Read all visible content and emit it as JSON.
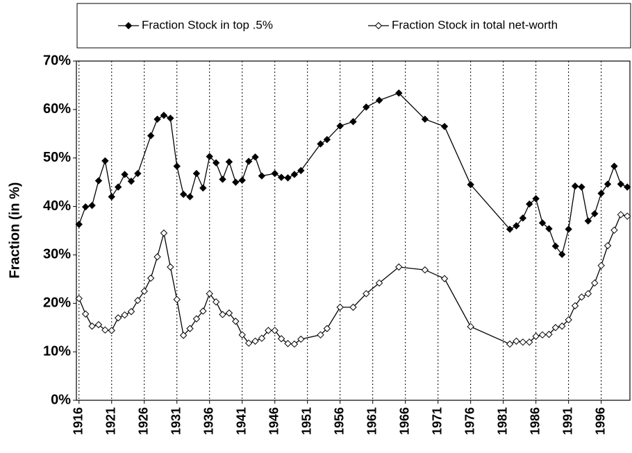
{
  "chart_data": {
    "type": "line",
    "y_label": "Fraction (in %)",
    "xlim": [
      1915.6,
      2000.4
    ],
    "xticks": [
      1916,
      1921,
      1926,
      1931,
      1936,
      1941,
      1946,
      1951,
      1956,
      1961,
      1966,
      1971,
      1976,
      1981,
      1986,
      1991,
      1996
    ],
    "ylim": [
      0,
      70
    ],
    "yticks": [
      {
        "value": 0,
        "label": "0%"
      },
      {
        "value": 10,
        "label": "10%"
      },
      {
        "value": 20,
        "label": "20%"
      },
      {
        "value": 30,
        "label": "30%"
      },
      {
        "value": 40,
        "label": "40%"
      },
      {
        "value": 50,
        "label": "50%"
      },
      {
        "value": 60,
        "label": "60%"
      },
      {
        "value": 70,
        "label": "70%"
      }
    ],
    "grid": true,
    "legend": "top",
    "series": [
      {
        "name": "Fraction Stock in top .5%",
        "color": "#000000",
        "marker": "filled-diamond",
        "x": [
          1916,
          1917,
          1918,
          1919,
          1920,
          1921,
          1922,
          1923,
          1924,
          1925,
          1927,
          1928,
          1929,
          1930,
          1931,
          1932,
          1933,
          1934,
          1935,
          1936,
          1937,
          1938,
          1939,
          1940,
          1941,
          1942,
          1943,
          1944,
          1946,
          1947,
          1948,
          1949,
          1950,
          1953,
          1954,
          1956,
          1958,
          1960,
          1962,
          1965,
          1969,
          1972,
          1976,
          1982,
          1983,
          1984,
          1985,
          1986,
          1987,
          1988,
          1989,
          1990,
          1991,
          1992,
          1993,
          1994,
          1995,
          1996,
          1997,
          1998,
          1999,
          2000
        ],
        "values": [
          36.3,
          39.9,
          40.2,
          45.3,
          49.4,
          42,
          44,
          46.6,
          45.2,
          46.8,
          54.6,
          58,
          58.8,
          58.2,
          48.3,
          42.5,
          42,
          46.8,
          43.8,
          50.3,
          49,
          45.6,
          49.2,
          45,
          45.4,
          49.3,
          50.2,
          46.3,
          46.8,
          46,
          45.9,
          46.6,
          47.4,
          52.9,
          53.8,
          56.6,
          57.5,
          60.5,
          61.9,
          63.4,
          58,
          56.5,
          44.5,
          35.3,
          36,
          37.6,
          40.5,
          41.6,
          36.6,
          35.4,
          31.8,
          30.1,
          35.3,
          44.2,
          44,
          37,
          38.5,
          42.7,
          44.6,
          48.3,
          44.6,
          44
        ]
      },
      {
        "name": "Fraction Stock in total net-worth",
        "color": "#000000",
        "marker": "open-diamond",
        "x": [
          1916,
          1917,
          1918,
          1919,
          1920,
          1921,
          1922,
          1923,
          1924,
          1925,
          1926,
          1927,
          1928,
          1929,
          1930,
          1931,
          1932,
          1933,
          1934,
          1935,
          1936,
          1937,
          1938,
          1939,
          1940,
          1941,
          1942,
          1943,
          1944,
          1945,
          1946,
          1947,
          1948,
          1949,
          1950,
          1953,
          1954,
          1956,
          1958,
          1960,
          1962,
          1965,
          1969,
          1972,
          1976,
          1982,
          1983,
          1984,
          1985,
          1986,
          1987,
          1988,
          1989,
          1990,
          1991,
          1992,
          1993,
          1994,
          1995,
          1996,
          1997,
          1998,
          1999,
          2000
        ],
        "values": [
          21,
          17.8,
          15.3,
          15.6,
          14.5,
          14.4,
          17,
          17.6,
          18.3,
          20.6,
          22.5,
          25.2,
          29.6,
          34.5,
          27.5,
          20.8,
          13.4,
          14.8,
          16.8,
          18.4,
          22,
          20.3,
          17.7,
          18,
          16.3,
          13.5,
          11.8,
          12.2,
          12.8,
          14.4,
          14.4,
          12.7,
          11.7,
          11.6,
          12.6,
          13.5,
          14.8,
          19.2,
          19.2,
          22,
          24.2,
          27.5,
          26.9,
          25.1,
          15.2,
          11.6,
          12.2,
          12,
          12,
          13.2,
          13.5,
          13.6,
          15,
          15.3,
          16.6,
          19.5,
          21.3,
          22,
          24.2,
          27.8,
          31.9,
          35.1,
          38.3,
          38
        ]
      }
    ]
  }
}
